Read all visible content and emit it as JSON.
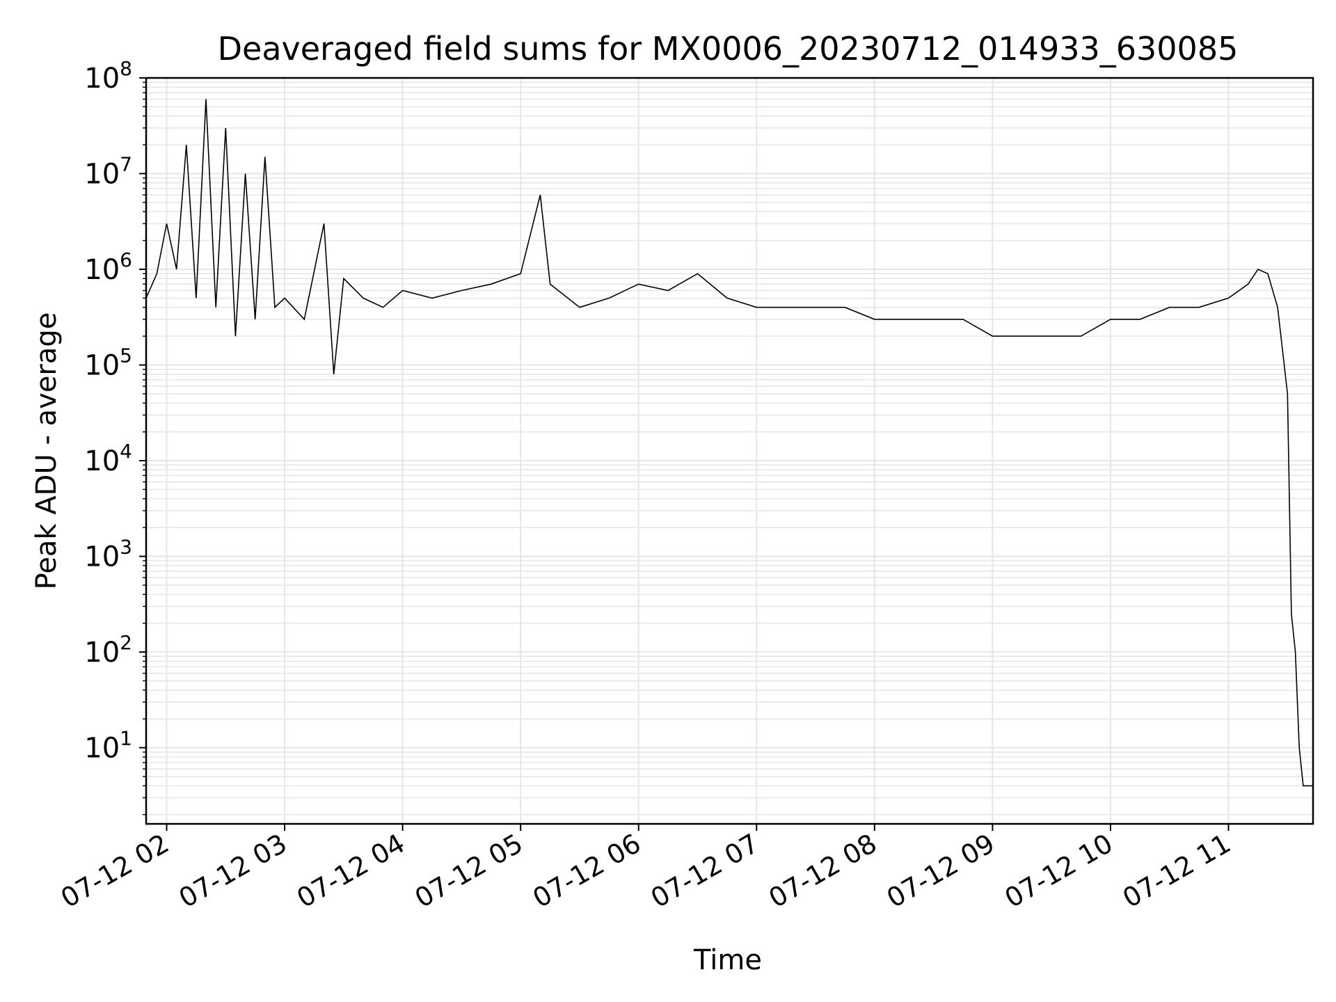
{
  "chart_data": {
    "type": "line",
    "title": "Deaveraged field sums for MX0006_20230712_014933_630085",
    "xlabel": "Time",
    "ylabel": "Peak ADU - average",
    "yscale": "log",
    "ylim": [
      1.6,
      100000000
    ],
    "xlim": [
      "2023-07-12 01:49:33",
      "2023-07-12 11:43:00"
    ],
    "x_tick_labels": [
      "07-12 02",
      "07-12 03",
      "07-12 04",
      "07-12 05",
      "07-12 06",
      "07-12 07",
      "07-12 08",
      "07-12 09",
      "07-12 10",
      "07-12 11"
    ],
    "y_tick_labels": [
      {
        "base": "10",
        "exp": "1"
      },
      {
        "base": "10",
        "exp": "2"
      },
      {
        "base": "10",
        "exp": "3"
      },
      {
        "base": "10",
        "exp": "4"
      },
      {
        "base": "10",
        "exp": "5"
      },
      {
        "base": "10",
        "exp": "6"
      },
      {
        "base": "10",
        "exp": "7"
      },
      {
        "base": "10",
        "exp": "8"
      }
    ],
    "grid": true,
    "line_color": "#000000",
    "grid_color": "#e6e6e6",
    "series": [
      {
        "x": [
          "2023-07-12 01:49:33",
          "2023-07-12 01:55",
          "2023-07-12 02:00",
          "2023-07-12 02:05",
          "2023-07-12 02:10",
          "2023-07-12 02:15",
          "2023-07-12 02:20",
          "2023-07-12 02:25",
          "2023-07-12 02:30",
          "2023-07-12 02:35",
          "2023-07-12 02:40",
          "2023-07-12 02:45",
          "2023-07-12 02:50",
          "2023-07-12 02:55",
          "2023-07-12 03:00",
          "2023-07-12 03:10",
          "2023-07-12 03:20",
          "2023-07-12 03:25",
          "2023-07-12 03:30",
          "2023-07-12 03:40",
          "2023-07-12 03:50",
          "2023-07-12 04:00",
          "2023-07-12 04:15",
          "2023-07-12 04:30",
          "2023-07-12 04:45",
          "2023-07-12 05:00",
          "2023-07-12 05:10",
          "2023-07-12 05:15",
          "2023-07-12 05:30",
          "2023-07-12 05:45",
          "2023-07-12 06:00",
          "2023-07-12 06:15",
          "2023-07-12 06:30",
          "2023-07-12 06:45",
          "2023-07-12 07:00",
          "2023-07-12 07:15",
          "2023-07-12 07:30",
          "2023-07-12 07:45",
          "2023-07-12 08:00",
          "2023-07-12 08:15",
          "2023-07-12 08:30",
          "2023-07-12 08:45",
          "2023-07-12 09:00",
          "2023-07-12 09:15",
          "2023-07-12 09:30",
          "2023-07-12 09:45",
          "2023-07-12 10:00",
          "2023-07-12 10:15",
          "2023-07-12 10:30",
          "2023-07-12 10:45",
          "2023-07-12 11:00",
          "2023-07-12 11:10",
          "2023-07-12 11:15",
          "2023-07-12 11:20",
          "2023-07-12 11:25",
          "2023-07-12 11:30",
          "2023-07-12 11:32",
          "2023-07-12 11:34",
          "2023-07-12 11:36",
          "2023-07-12 11:38",
          "2023-07-12 11:40",
          "2023-07-12 11:43"
        ],
        "y": [
          500000,
          900000,
          3000000,
          1000000,
          20000000,
          500000,
          60000000,
          400000,
          30000000,
          200000,
          10000000,
          300000,
          15000000,
          400000,
          500000,
          300000,
          3000000,
          80000,
          800000,
          500000,
          400000,
          600000,
          500000,
          600000,
          700000,
          900000,
          6000000,
          700000,
          400000,
          500000,
          700000,
          600000,
          900000,
          500000,
          400000,
          400000,
          400000,
          400000,
          300000,
          300000,
          300000,
          300000,
          200000,
          200000,
          200000,
          200000,
          300000,
          300000,
          400000,
          400000,
          500000,
          700000,
          1000000,
          900000,
          400000,
          50000,
          250,
          100,
          10,
          4,
          4,
          4
        ]
      }
    ]
  }
}
